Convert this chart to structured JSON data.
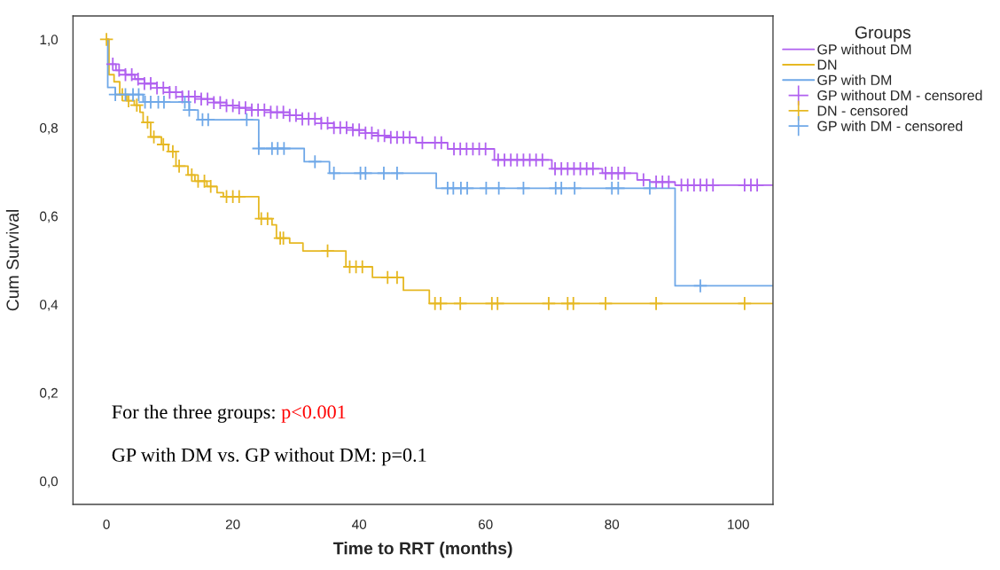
{
  "chart_data": {
    "type": "step",
    "xlabel": "Time to RRT (months)",
    "ylabel": "Cum Survival",
    "legend_title": "Groups",
    "xlim": [
      -5.3,
      105.5
    ],
    "ylim": [
      -0.053,
      1.053
    ],
    "xticks": [
      0,
      20,
      40,
      60,
      80,
      100
    ],
    "yticks": [
      {
        "value": 0,
        "label": "0,0"
      },
      {
        "value": 0.2,
        "label": "0,2"
      },
      {
        "value": 0.4,
        "label": "0,4"
      },
      {
        "value": 0.6,
        "label": "0,6"
      },
      {
        "value": 0.8,
        "label": "0,8"
      },
      {
        "value": 1.0,
        "label": "1,0"
      }
    ],
    "grid": false,
    "legend": "top right",
    "annotations": [
      "For the three groups: ",
      "p<0.001",
      "GP with DM vs. GP without DM: p=0.1"
    ],
    "series": [
      {
        "name": "GP without DM",
        "color": "#b060f0",
        "x": [
          0,
          0.3,
          1.5,
          3,
          4.5,
          6,
          8,
          10,
          12,
          15,
          17,
          19,
          21,
          23,
          26,
          29,
          31,
          34,
          36,
          39,
          41,
          43,
          45,
          49,
          54,
          61.4,
          70.5,
          78.5,
          84,
          86,
          90,
          105.4
        ],
        "values": [
          1.0,
          0.944,
          0.93,
          0.92,
          0.91,
          0.9,
          0.89,
          0.88,
          0.87,
          0.865,
          0.857,
          0.85,
          0.845,
          0.84,
          0.835,
          0.828,
          0.82,
          0.81,
          0.8,
          0.795,
          0.788,
          0.782,
          0.778,
          0.766,
          0.752,
          0.727,
          0.707,
          0.697,
          0.682,
          0.677,
          0.67,
          0.67
        ]
      },
      {
        "name": "DN",
        "color": "#e6b822",
        "x": [
          0,
          0.4,
          1.2,
          2.1,
          3.2,
          4.4,
          5.3,
          5.8,
          7.0,
          8.7,
          9.8,
          11,
          12.9,
          14,
          15.9,
          17.5,
          18.5,
          24.1,
          26.2,
          26.9,
          29,
          31.1,
          37.9,
          42.1,
          47,
          51.1,
          105.4
        ],
        "values": [
          1.0,
          0.92,
          0.904,
          0.875,
          0.861,
          0.851,
          0.835,
          0.812,
          0.779,
          0.762,
          0.746,
          0.713,
          0.693,
          0.679,
          0.667,
          0.653,
          0.644,
          0.594,
          0.58,
          0.55,
          0.539,
          0.521,
          0.485,
          0.461,
          0.432,
          0.402,
          0.402
        ]
      },
      {
        "name": "GP with DM",
        "color": "#6fa8e8",
        "x": [
          0,
          0.2,
          1.4,
          5.8,
          13.1,
          14.5,
          24.1,
          31.3,
          35.3,
          52.2,
          90.0,
          105.4
        ],
        "values": [
          1.0,
          0.891,
          0.875,
          0.858,
          0.84,
          0.818,
          0.753,
          0.723,
          0.697,
          0.663,
          0.442,
          0.442
        ]
      },
      {
        "name": "GP without DM - censored",
        "type": "scatter",
        "marker": "cross",
        "color": "#b060f0",
        "x": [
          1,
          2,
          3,
          4,
          5,
          6,
          7,
          8,
          9,
          10,
          11,
          12,
          13,
          14,
          15,
          16,
          17,
          18,
          19,
          20,
          21,
          22,
          23,
          24,
          25,
          26,
          27,
          28,
          29,
          30,
          31,
          32,
          33,
          34,
          35,
          36,
          37,
          38,
          39,
          40,
          41,
          42,
          43,
          44,
          45,
          46,
          47,
          48,
          50,
          52,
          53,
          55,
          56,
          57,
          58,
          59,
          60,
          62,
          63,
          64,
          65,
          66,
          67,
          68,
          69,
          71,
          72,
          73,
          74,
          75,
          76,
          77,
          79,
          80,
          81,
          82,
          85,
          87,
          88,
          89,
          91,
          92,
          93,
          94,
          95,
          96,
          101,
          102,
          103
        ],
        "values": [
          0.944,
          0.93,
          0.92,
          0.92,
          0.91,
          0.9,
          0.9,
          0.89,
          0.89,
          0.88,
          0.88,
          0.87,
          0.87,
          0.87,
          0.865,
          0.865,
          0.857,
          0.857,
          0.85,
          0.85,
          0.845,
          0.845,
          0.84,
          0.84,
          0.84,
          0.835,
          0.835,
          0.835,
          0.828,
          0.828,
          0.82,
          0.82,
          0.82,
          0.81,
          0.81,
          0.8,
          0.8,
          0.8,
          0.795,
          0.795,
          0.788,
          0.788,
          0.782,
          0.782,
          0.778,
          0.778,
          0.778,
          0.778,
          0.766,
          0.766,
          0.766,
          0.752,
          0.752,
          0.752,
          0.752,
          0.752,
          0.752,
          0.727,
          0.727,
          0.727,
          0.727,
          0.727,
          0.727,
          0.727,
          0.727,
          0.707,
          0.707,
          0.707,
          0.707,
          0.707,
          0.707,
          0.707,
          0.697,
          0.697,
          0.697,
          0.697,
          0.682,
          0.677,
          0.677,
          0.677,
          0.67,
          0.67,
          0.67,
          0.67,
          0.67,
          0.67,
          0.67,
          0.67,
          0.67
        ]
      },
      {
        "name": "DN - censored",
        "type": "scatter",
        "marker": "cross",
        "color": "#e6b822",
        "x": [
          0,
          2.5,
          3.5,
          4.8,
          6.5,
          7.5,
          9,
          10.5,
          11.5,
          13.5,
          14.5,
          15.5,
          16.5,
          19,
          20,
          21,
          24.5,
          25.5,
          27.5,
          28,
          35,
          38.5,
          39.5,
          40.5,
          44.5,
          46,
          52,
          52.9,
          56,
          61,
          61.9,
          70,
          73,
          73.9,
          79,
          87,
          101
        ],
        "values": [
          1.0,
          0.875,
          0.861,
          0.851,
          0.812,
          0.779,
          0.762,
          0.746,
          0.713,
          0.693,
          0.679,
          0.679,
          0.667,
          0.644,
          0.644,
          0.644,
          0.594,
          0.594,
          0.55,
          0.55,
          0.521,
          0.485,
          0.485,
          0.485,
          0.461,
          0.461,
          0.402,
          0.402,
          0.402,
          0.402,
          0.402,
          0.402,
          0.402,
          0.402,
          0.402,
          0.402,
          0.402
        ]
      },
      {
        "name": "GP with DM - censored",
        "type": "scatter",
        "marker": "cross",
        "color": "#6fa8e8",
        "x": [
          1.4,
          3.0,
          4.2,
          5.1,
          6.1,
          7.0,
          8.2,
          9.1,
          12.4,
          13.1,
          15.2,
          16.1,
          22.2,
          24.1,
          26.2,
          27.1,
          28.1,
          33,
          36,
          40.2,
          41,
          43.9,
          46,
          54.0,
          54.9,
          56.1,
          57.1,
          60.1,
          62.1,
          66.0,
          71.1,
          72.0,
          74.1,
          80.0,
          81.0,
          86.0,
          94.0
        ],
        "values": [
          0.875,
          0.875,
          0.875,
          0.875,
          0.858,
          0.858,
          0.858,
          0.858,
          0.858,
          0.84,
          0.818,
          0.818,
          0.818,
          0.753,
          0.753,
          0.753,
          0.753,
          0.723,
          0.697,
          0.697,
          0.697,
          0.697,
          0.697,
          0.663,
          0.663,
          0.663,
          0.663,
          0.663,
          0.663,
          0.663,
          0.663,
          0.663,
          0.663,
          0.663,
          0.663,
          0.663,
          0.442
        ]
      }
    ]
  }
}
